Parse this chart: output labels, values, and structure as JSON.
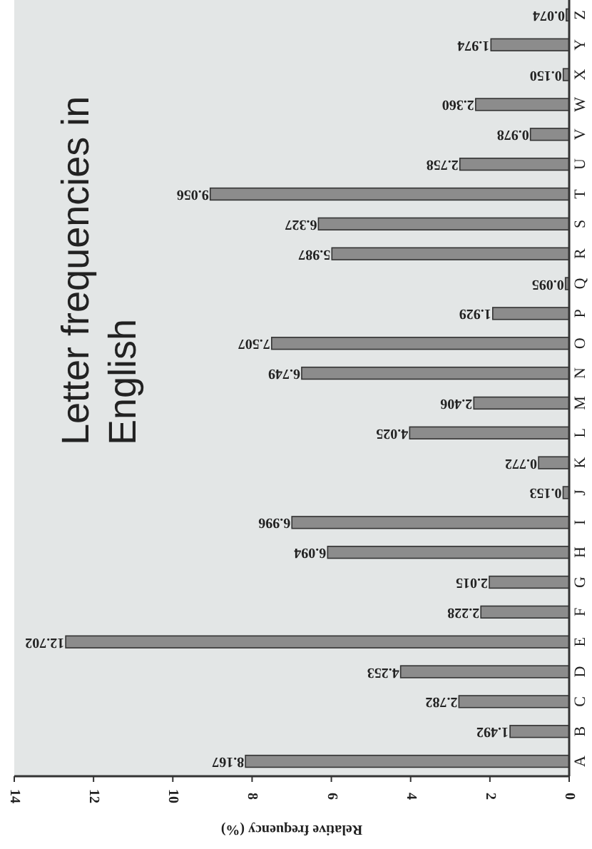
{
  "chart_data": {
    "type": "bar",
    "orientation": "horizontal",
    "title": "Letter frequencies in English",
    "xlabel": "Relative frequency (%)",
    "categories": [
      "Z",
      "Y",
      "X",
      "W",
      "V",
      "U",
      "T",
      "S",
      "R",
      "Q",
      "P",
      "O",
      "N",
      "M",
      "L",
      "K",
      "J",
      "I",
      "H",
      "G",
      "F",
      "E",
      "D",
      "C",
      "B",
      "A"
    ],
    "values": [
      0.074,
      1.974,
      0.15,
      2.36,
      0.978,
      2.758,
      9.056,
      6.327,
      5.987,
      0.095,
      1.929,
      7.507,
      6.749,
      2.406,
      4.025,
      0.772,
      0.153,
      6.996,
      6.094,
      2.015,
      2.228,
      12.702,
      4.253,
      2.782,
      1.492,
      8.167
    ],
    "value_labels": [
      "0.074",
      "1.974",
      "0.150",
      "2.360",
      "0.978",
      "2.758",
      "9.056",
      "6.327",
      "5.987",
      "0.095",
      "1.929",
      "7.507",
      "6.749",
      "2.406",
      "4.025",
      "0.772",
      "0.153",
      "6.996",
      "6.094",
      "2.015",
      "2.228",
      "12.702",
      "4.253",
      "2.782",
      "1.492",
      "8.167"
    ],
    "color": "#8c8c8c",
    "xlim": [
      14,
      0
    ],
    "xticks": [
      14,
      12,
      10,
      8,
      6,
      4,
      2,
      0
    ],
    "grid": false
  }
}
